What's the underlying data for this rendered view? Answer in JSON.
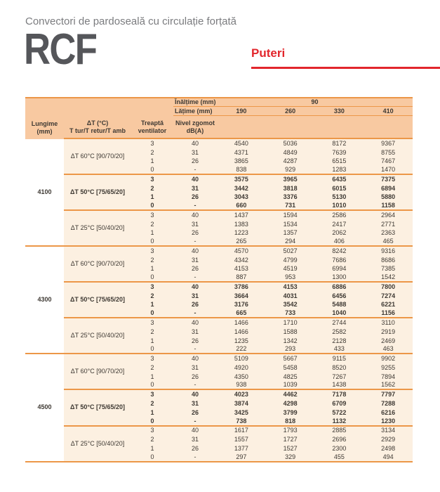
{
  "page": {
    "subtitle": "Convectori de pardoseală cu circulație forțată",
    "product_code": "RCF",
    "section_title": "Puteri"
  },
  "colors": {
    "header_bg": "#f8c9a1",
    "data_bg": "#fcf0e1",
    "line": "#ec9748",
    "text": "#3e3933",
    "accent_red": "#e2262c",
    "subtitle_gray": "#7b7c7f",
    "code_gray": "#55565a"
  },
  "table": {
    "header": {
      "inaltime_label": "Înălțime (mm)",
      "inaltime_value": "90",
      "latime_label": "Lățime (mm)",
      "latime_values": [
        "190",
        "260",
        "330",
        "410"
      ],
      "lungime_line1": "Lungime",
      "lungime_line2": "(mm)",
      "dt_line1": "ΔT (°C)",
      "dt_line2": "T tur/T retur/T amb",
      "treapta_line1": "Treaptă",
      "treapta_line2": "ventilator",
      "zgomot_line1": "Nivel zgomot",
      "zgomot_line2": "dB(A)"
    },
    "groups": [
      {
        "lungime": "4100",
        "blocks": [
          {
            "dt": "ΔT 60°C [90/70/20]",
            "bold": false,
            "rows": [
              {
                "treapta": "3",
                "zgomot": "40",
                "values": [
                  "4540",
                  "5036",
                  "8172",
                  "9367"
                ]
              },
              {
                "treapta": "2",
                "zgomot": "31",
                "values": [
                  "4371",
                  "4849",
                  "7639",
                  "8755"
                ]
              },
              {
                "treapta": "1",
                "zgomot": "26",
                "values": [
                  "3865",
                  "4287",
                  "6515",
                  "7467"
                ]
              },
              {
                "treapta": "0",
                "zgomot": "-",
                "values": [
                  "838",
                  "929",
                  "1283",
                  "1470"
                ]
              }
            ]
          },
          {
            "dt": "ΔT 50°C [75/65/20]",
            "bold": true,
            "rows": [
              {
                "treapta": "3",
                "zgomot": "40",
                "values": [
                  "3575",
                  "3965",
                  "6435",
                  "7375"
                ]
              },
              {
                "treapta": "2",
                "zgomot": "31",
                "values": [
                  "3442",
                  "3818",
                  "6015",
                  "6894"
                ]
              },
              {
                "treapta": "1",
                "zgomot": "26",
                "values": [
                  "3043",
                  "3376",
                  "5130",
                  "5880"
                ]
              },
              {
                "treapta": "0",
                "zgomot": "-",
                "values": [
                  "660",
                  "731",
                  "1010",
                  "1158"
                ]
              }
            ]
          },
          {
            "dt": "ΔT 25°C [50/40/20]",
            "bold": false,
            "rows": [
              {
                "treapta": "3",
                "zgomot": "40",
                "values": [
                  "1437",
                  "1594",
                  "2586",
                  "2964"
                ]
              },
              {
                "treapta": "2",
                "zgomot": "31",
                "values": [
                  "1383",
                  "1534",
                  "2417",
                  "2771"
                ]
              },
              {
                "treapta": "1",
                "zgomot": "26",
                "values": [
                  "1223",
                  "1357",
                  "2062",
                  "2363"
                ]
              },
              {
                "treapta": "0",
                "zgomot": "-",
                "values": [
                  "265",
                  "294",
                  "406",
                  "465"
                ]
              }
            ]
          }
        ]
      },
      {
        "lungime": "4300",
        "blocks": [
          {
            "dt": "ΔT 60°C [90/70/20]",
            "bold": false,
            "rows": [
              {
                "treapta": "3",
                "zgomot": "40",
                "values": [
                  "4570",
                  "5027",
                  "8242",
                  "9316"
                ]
              },
              {
                "treapta": "2",
                "zgomot": "31",
                "values": [
                  "4342",
                  "4799",
                  "7686",
                  "8686"
                ]
              },
              {
                "treapta": "1",
                "zgomot": "26",
                "values": [
                  "4153",
                  "4519",
                  "6994",
                  "7385"
                ]
              },
              {
                "treapta": "0",
                "zgomot": "-",
                "values": [
                  "887",
                  "953",
                  "1300",
                  "1542"
                ]
              }
            ]
          },
          {
            "dt": "ΔT 50°C [75/65/20]",
            "bold": true,
            "rows": [
              {
                "treapta": "3",
                "zgomot": "40",
                "values": [
                  "3786",
                  "4153",
                  "6886",
                  "7800"
                ]
              },
              {
                "treapta": "2",
                "zgomot": "31",
                "values": [
                  "3664",
                  "4031",
                  "6456",
                  "7274"
                ]
              },
              {
                "treapta": "1",
                "zgomot": "26",
                "values": [
                  "3176",
                  "3542",
                  "5488",
                  "6221"
                ]
              },
              {
                "treapta": "0",
                "zgomot": "-",
                "values": [
                  "665",
                  "733",
                  "1040",
                  "1156"
                ]
              }
            ]
          },
          {
            "dt": "ΔT 25°C [50/40/20]",
            "bold": false,
            "rows": [
              {
                "treapta": "3",
                "zgomot": "40",
                "values": [
                  "1466",
                  "1710",
                  "2744",
                  "3110"
                ]
              },
              {
                "treapta": "2",
                "zgomot": "31",
                "values": [
                  "1466",
                  "1588",
                  "2582",
                  "2919"
                ]
              },
              {
                "treapta": "1",
                "zgomot": "26",
                "values": [
                  "1235",
                  "1342",
                  "2128",
                  "2469"
                ]
              },
              {
                "treapta": "0",
                "zgomot": "-",
                "values": [
                  "222",
                  "293",
                  "433",
                  "463"
                ]
              }
            ]
          }
        ]
      },
      {
        "lungime": "4500",
        "blocks": [
          {
            "dt": "ΔT 60°C [90/70/20]",
            "bold": false,
            "rows": [
              {
                "treapta": "3",
                "zgomot": "40",
                "values": [
                  "5109",
                  "5667",
                  "9115",
                  "9902"
                ]
              },
              {
                "treapta": "2",
                "zgomot": "31",
                "values": [
                  "4920",
                  "5458",
                  "8520",
                  "9255"
                ]
              },
              {
                "treapta": "1",
                "zgomot": "26",
                "values": [
                  "4350",
                  "4825",
                  "7267",
                  "7894"
                ]
              },
              {
                "treapta": "0",
                "zgomot": "-",
                "values": [
                  "938",
                  "1039",
                  "1438",
                  "1562"
                ]
              }
            ]
          },
          {
            "dt": "ΔT 50°C [75/65/20]",
            "bold": true,
            "rows": [
              {
                "treapta": "3",
                "zgomot": "40",
                "values": [
                  "4023",
                  "4462",
                  "7178",
                  "7797"
                ]
              },
              {
                "treapta": "2",
                "zgomot": "31",
                "values": [
                  "3874",
                  "4298",
                  "6709",
                  "7288"
                ]
              },
              {
                "treapta": "1",
                "zgomot": "26",
                "values": [
                  "3425",
                  "3799",
                  "5722",
                  "6216"
                ]
              },
              {
                "treapta": "0",
                "zgomot": "-",
                "values": [
                  "738",
                  "818",
                  "1132",
                  "1230"
                ]
              }
            ]
          },
          {
            "dt": "ΔT 25°C [50/40/20]",
            "bold": false,
            "rows": [
              {
                "treapta": "3",
                "zgomot": "40",
                "values": [
                  "1617",
                  "1793",
                  "2885",
                  "3134"
                ]
              },
              {
                "treapta": "2",
                "zgomot": "31",
                "values": [
                  "1557",
                  "1727",
                  "2696",
                  "2929"
                ]
              },
              {
                "treapta": "1",
                "zgomot": "26",
                "values": [
                  "1377",
                  "1527",
                  "2300",
                  "2498"
                ]
              },
              {
                "treapta": "0",
                "zgomot": "-",
                "values": [
                  "297",
                  "329",
                  "455",
                  "494"
                ]
              }
            ]
          }
        ]
      }
    ]
  }
}
